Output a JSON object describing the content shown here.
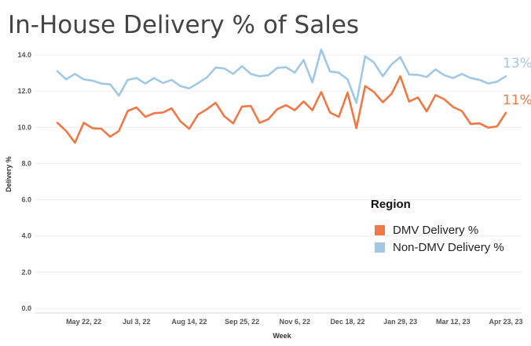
{
  "chart_data": {
    "type": "line",
    "title": "In-House Delivery % of Sales",
    "xlabel": "Week",
    "ylabel": "Delivery %",
    "ylim": [
      0,
      14.4
    ],
    "yticks": [
      "0.0",
      "2.0",
      "4.0",
      "6.0",
      "8.0",
      "10.0",
      "12.0",
      "14.0"
    ],
    "ytick_values": [
      0,
      2,
      4,
      6,
      8,
      10,
      12,
      14
    ],
    "xtick_labels": [
      "May 22, 22",
      "Jul 3, 22",
      "Aug 14, 22",
      "Sep 25, 22",
      "Nov 6, 22",
      "Dec 18, 22",
      "Jan 29, 23",
      "Mar 12, 23",
      "Apr 23, 23"
    ],
    "xtick_weeks": [
      3,
      9,
      15,
      21,
      27,
      33,
      39,
      45,
      51
    ],
    "grid": "horizontal",
    "legend_title": "Region",
    "legend_position": "right",
    "series": [
      {
        "name": "DMV Delivery %",
        "color": "#f07844",
        "end_label": "11%",
        "values": [
          10.25,
          9.8,
          9.15,
          10.25,
          9.95,
          9.92,
          9.48,
          9.8,
          10.9,
          11.1,
          10.58,
          10.78,
          10.82,
          11.05,
          10.33,
          9.92,
          10.7,
          11.0,
          11.35,
          10.6,
          10.22,
          11.15,
          11.18,
          10.25,
          10.45,
          11.0,
          11.22,
          10.95,
          11.43,
          10.95,
          11.95,
          10.82,
          10.58,
          11.92,
          9.95,
          12.28,
          11.95,
          11.38,
          11.85,
          12.82,
          11.42,
          11.65,
          10.88,
          11.78,
          11.55,
          11.12,
          10.9,
          10.18,
          10.22,
          9.98,
          10.05,
          10.8
        ]
      },
      {
        "name": "Non-DMV Delivery %",
        "color": "#a0c8e6",
        "end_label": "13%",
        "values": [
          13.1,
          12.65,
          12.95,
          12.65,
          12.58,
          12.42,
          12.38,
          11.75,
          12.62,
          12.72,
          12.42,
          12.72,
          12.45,
          12.62,
          12.28,
          12.15,
          12.45,
          12.75,
          13.3,
          13.25,
          12.95,
          13.38,
          12.95,
          12.82,
          12.88,
          13.28,
          13.32,
          13.02,
          13.72,
          12.48,
          14.3,
          13.08,
          13.02,
          12.65,
          11.35,
          13.92,
          13.58,
          12.82,
          13.48,
          13.88,
          12.92,
          12.9,
          12.78,
          13.2,
          12.88,
          12.72,
          12.95,
          12.72,
          12.62,
          12.42,
          12.52,
          12.82
        ]
      }
    ]
  }
}
